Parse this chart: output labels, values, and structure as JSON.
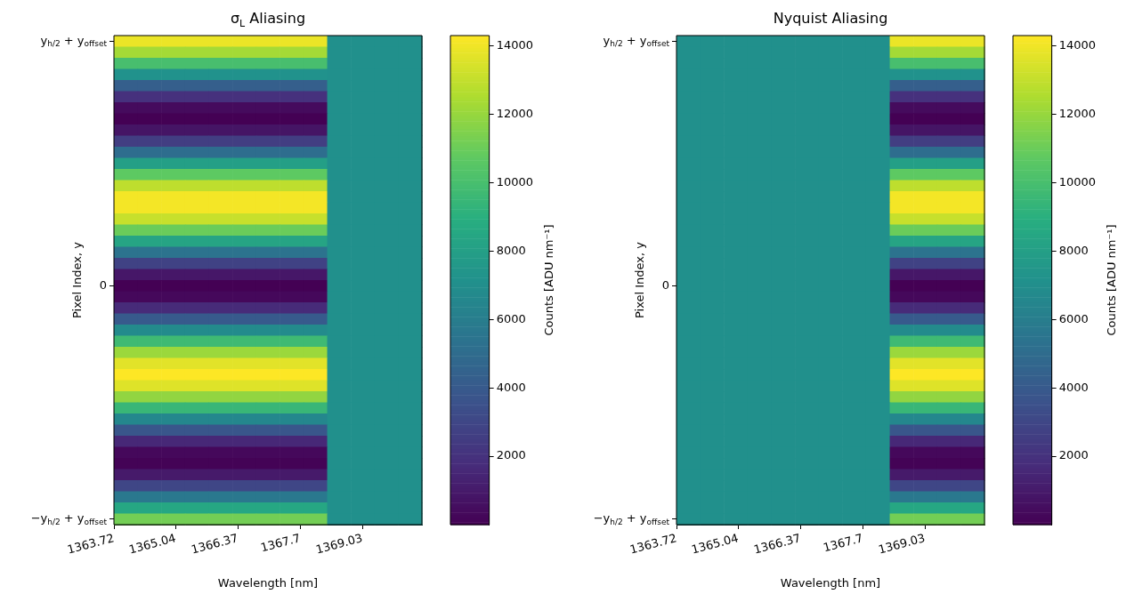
{
  "chart_data": [
    {
      "type": "heatmap",
      "title": "σ$_{L}$ Aliasing",
      "xlabel": "Wavelength [nm]",
      "ylabel": "Pixel Index, y",
      "clabel": "Counts [ADU nm⁻¹]",
      "xlim": [
        1363.72,
        1370.3
      ],
      "xticks": [
        1363.72,
        1365.04,
        1366.37,
        1367.7,
        1369.03
      ],
      "y_categories": [
        "y$_{h/2}$ + y$_{offset}$",
        null,
        null,
        null,
        null,
        null,
        null,
        null,
        null,
        null,
        null,
        null,
        null,
        null,
        null,
        null,
        null,
        null,
        null,
        null,
        null,
        null,
        "0",
        null,
        null,
        null,
        null,
        null,
        null,
        null,
        null,
        null,
        null,
        null,
        null,
        null,
        null,
        null,
        null,
        null,
        null,
        null,
        null,
        "−y$_{h/2}$ + y$_{offset}$"
      ],
      "clim": [
        0,
        14300
      ],
      "cticks": [
        2000,
        4000,
        6000,
        8000,
        10000,
        12000,
        14000
      ],
      "cells": [
        [
          13900,
          13900,
          13900,
          13900,
          13900,
          13900,
          13900,
          13900,
          13900,
          7100,
          7100,
          7100,
          7100
        ],
        [
          12300,
          12300,
          12300,
          12300,
          12300,
          12300,
          12300,
          12300,
          12300,
          7100,
          7100,
          7100,
          7100
        ],
        [
          10000,
          10000,
          10000,
          10000,
          10000,
          10000,
          10000,
          10000,
          10000,
          7100,
          7100,
          7100,
          7100
        ],
        [
          7200,
          7200,
          7200,
          7200,
          7200,
          7200,
          7200,
          7200,
          7200,
          7100,
          7100,
          7100,
          7100
        ],
        [
          4300,
          4300,
          4300,
          4300,
          4300,
          4300,
          4300,
          4300,
          4300,
          7100,
          7100,
          7100,
          7100
        ],
        [
          2000,
          2000,
          2000,
          2000,
          2000,
          2000,
          2000,
          2000,
          2000,
          7100,
          7100,
          7100,
          7100
        ],
        [
          400,
          400,
          400,
          400,
          400,
          400,
          400,
          400,
          400,
          7100,
          7100,
          7100,
          7100
        ],
        [
          0,
          0,
          0,
          0,
          0,
          0,
          0,
          0,
          0,
          7100,
          7100,
          7100,
          7100
        ],
        [
          800,
          800,
          800,
          800,
          800,
          800,
          800,
          800,
          800,
          7100,
          7100,
          7100,
          7100
        ],
        [
          2600,
          2600,
          2600,
          2600,
          2600,
          2600,
          2600,
          2600,
          2600,
          7100,
          7100,
          7100,
          7100
        ],
        [
          5100,
          5100,
          5100,
          5100,
          5100,
          5100,
          5100,
          5100,
          5100,
          7100,
          7100,
          7100,
          7100
        ],
        [
          8000,
          8000,
          8000,
          8000,
          8000,
          8000,
          8000,
          8000,
          8000,
          7100,
          7100,
          7100,
          7100
        ],
        [
          10700,
          10700,
          10700,
          10700,
          10700,
          10700,
          10700,
          10700,
          10700,
          7100,
          7100,
          7100,
          7100
        ],
        [
          12900,
          12900,
          12900,
          12900,
          12900,
          12900,
          12900,
          12900,
          12900,
          7100,
          7100,
          7100,
          7100
        ],
        [
          14100,
          14100,
          14100,
          14100,
          14100,
          14100,
          14100,
          14100,
          14100,
          7100,
          7100,
          7100,
          7100
        ],
        [
          14100,
          14100,
          14100,
          14100,
          14100,
          14100,
          14100,
          14100,
          14100,
          7100,
          7100,
          7100,
          7100
        ],
        [
          13100,
          13100,
          13100,
          13100,
          13100,
          13100,
          13100,
          13100,
          13100,
          7100,
          7100,
          7100,
          7100
        ],
        [
          11000,
          11000,
          11000,
          11000,
          11000,
          11000,
          11000,
          11000,
          11000,
          7100,
          7100,
          7100,
          7100
        ],
        [
          8300,
          8300,
          8300,
          8300,
          8300,
          8300,
          8300,
          8300,
          8300,
          7100,
          7100,
          7100,
          7100
        ],
        [
          5400,
          5400,
          5400,
          5400,
          5400,
          5400,
          5400,
          5400,
          5400,
          7100,
          7100,
          7100,
          7100
        ],
        [
          2800,
          2800,
          2800,
          2800,
          2800,
          2800,
          2800,
          2800,
          2800,
          7100,
          7100,
          7100,
          7100
        ],
        [
          900,
          900,
          900,
          900,
          900,
          900,
          900,
          900,
          900,
          7100,
          7100,
          7100,
          7100
        ],
        [
          0,
          0,
          0,
          0,
          0,
          0,
          0,
          0,
          0,
          7100,
          7100,
          7100,
          7100
        ],
        [
          300,
          300,
          300,
          300,
          300,
          300,
          300,
          300,
          300,
          7100,
          7100,
          7100,
          7100
        ],
        [
          1700,
          1700,
          1700,
          1700,
          1700,
          1700,
          1700,
          1700,
          1700,
          7100,
          7100,
          7100,
          7100
        ],
        [
          4000,
          4000,
          4000,
          4000,
          4000,
          4000,
          4000,
          4000,
          4000,
          7100,
          7100,
          7100,
          7100
        ],
        [
          6800,
          6800,
          6800,
          6800,
          6800,
          6800,
          6800,
          6800,
          6800,
          7100,
          7100,
          7100,
          7100
        ],
        [
          9700,
          9700,
          9700,
          9700,
          9700,
          9700,
          9700,
          9700,
          9700,
          7100,
          7100,
          7100,
          7100
        ],
        [
          12100,
          12100,
          12100,
          12100,
          12100,
          12100,
          12100,
          12100,
          12100,
          7100,
          7100,
          7100,
          7100
        ],
        [
          13700,
          13700,
          13700,
          13700,
          13700,
          13700,
          13700,
          13700,
          13700,
          7100,
          7100,
          7100,
          7100
        ],
        [
          14300,
          14300,
          14300,
          14300,
          14300,
          14300,
          14300,
          14300,
          14300,
          7100,
          7100,
          7100,
          7100
        ],
        [
          13600,
          13600,
          13600,
          13600,
          13600,
          13600,
          13600,
          13600,
          13600,
          7100,
          7100,
          7100,
          7100
        ],
        [
          11900,
          11900,
          11900,
          11900,
          11900,
          11900,
          11900,
          11900,
          11900,
          7100,
          7100,
          7100,
          7100
        ],
        [
          9500,
          9500,
          9500,
          9500,
          9500,
          9500,
          9500,
          9500,
          9500,
          7100,
          7100,
          7100,
          7100
        ],
        [
          6600,
          6600,
          6600,
          6600,
          6600,
          6600,
          6600,
          6600,
          6600,
          7100,
          7100,
          7100,
          7100
        ],
        [
          3800,
          3800,
          3800,
          3800,
          3800,
          3800,
          3800,
          3800,
          3800,
          7100,
          7100,
          7100,
          7100
        ],
        [
          1600,
          1600,
          1600,
          1600,
          1600,
          1600,
          1600,
          1600,
          1600,
          7100,
          7100,
          7100,
          7100
        ],
        [
          300,
          300,
          300,
          300,
          300,
          300,
          300,
          300,
          300,
          7100,
          7100,
          7100,
          7100
        ],
        [
          100,
          100,
          100,
          100,
          100,
          100,
          100,
          100,
          100,
          7100,
          7100,
          7100,
          7100
        ],
        [
          1000,
          1000,
          1000,
          1000,
          1000,
          1000,
          1000,
          1000,
          1000,
          7100,
          7100,
          7100,
          7100
        ],
        [
          3000,
          3000,
          3000,
          3000,
          3000,
          3000,
          3000,
          3000,
          3000,
          7100,
          7100,
          7100,
          7100
        ],
        [
          5700,
          5700,
          5700,
          5700,
          5700,
          5700,
          5700,
          5700,
          5700,
          7100,
          7100,
          7100,
          7100
        ],
        [
          8500,
          8500,
          8500,
          8500,
          8500,
          8500,
          8500,
          8500,
          8500,
          7100,
          7100,
          7100,
          7100
        ],
        [
          11200,
          11200,
          11200,
          11200,
          11200,
          11200,
          11200,
          11200,
          11200,
          7100,
          7100,
          7100,
          7100
        ]
      ]
    },
    {
      "type": "heatmap",
      "title": "Nyquist Aliasing",
      "xlabel": "Wavelength [nm]",
      "ylabel": "Pixel Index, y",
      "clabel": "Counts [ADU nm⁻¹]",
      "xlim": [
        1363.72,
        1370.3
      ],
      "xticks": [
        1363.72,
        1365.04,
        1366.37,
        1367.7,
        1369.03
      ],
      "y_categories": [
        "y$_{h/2}$ + y$_{offset}$",
        null,
        null,
        null,
        null,
        null,
        null,
        null,
        null,
        null,
        null,
        null,
        null,
        null,
        null,
        null,
        null,
        null,
        null,
        null,
        null,
        null,
        "0",
        null,
        null,
        null,
        null,
        null,
        null,
        null,
        null,
        null,
        null,
        null,
        null,
        null,
        null,
        null,
        null,
        null,
        null,
        null,
        null,
        "−y$_{h/2}$ + y$_{offset}$"
      ],
      "clim": [
        0,
        14300
      ],
      "cticks": [
        2000,
        4000,
        6000,
        8000,
        10000,
        12000,
        14000
      ],
      "cells": [
        [
          7100,
          7100,
          7100,
          7100,
          7100,
          7100,
          7100,
          7100,
          7100,
          13900,
          13900,
          13900,
          13900
        ],
        [
          7100,
          7100,
          7100,
          7100,
          7100,
          7100,
          7100,
          7100,
          7100,
          12300,
          12300,
          12300,
          12300
        ],
        [
          7100,
          7100,
          7100,
          7100,
          7100,
          7100,
          7100,
          7100,
          7100,
          10000,
          10000,
          10000,
          10000
        ],
        [
          7100,
          7100,
          7100,
          7100,
          7100,
          7100,
          7100,
          7100,
          7100,
          7200,
          7200,
          7200,
          7200
        ],
        [
          7100,
          7100,
          7100,
          7100,
          7100,
          7100,
          7100,
          7100,
          7100,
          4300,
          4300,
          4300,
          4300
        ],
        [
          7100,
          7100,
          7100,
          7100,
          7100,
          7100,
          7100,
          7100,
          7100,
          2000,
          2000,
          2000,
          2000
        ],
        [
          7100,
          7100,
          7100,
          7100,
          7100,
          7100,
          7100,
          7100,
          7100,
          400,
          400,
          400,
          400
        ],
        [
          7100,
          7100,
          7100,
          7100,
          7100,
          7100,
          7100,
          7100,
          7100,
          0,
          0,
          0,
          0
        ],
        [
          7100,
          7100,
          7100,
          7100,
          7100,
          7100,
          7100,
          7100,
          7100,
          800,
          800,
          800,
          800
        ],
        [
          7100,
          7100,
          7100,
          7100,
          7100,
          7100,
          7100,
          7100,
          7100,
          2600,
          2600,
          2600,
          2600
        ],
        [
          7100,
          7100,
          7100,
          7100,
          7100,
          7100,
          7100,
          7100,
          7100,
          5100,
          5100,
          5100,
          5100
        ],
        [
          7100,
          7100,
          7100,
          7100,
          7100,
          7100,
          7100,
          7100,
          7100,
          8000,
          8000,
          8000,
          8000
        ],
        [
          7100,
          7100,
          7100,
          7100,
          7100,
          7100,
          7100,
          7100,
          7100,
          10700,
          10700,
          10700,
          10700
        ],
        [
          7100,
          7100,
          7100,
          7100,
          7100,
          7100,
          7100,
          7100,
          7100,
          12900,
          12900,
          12900,
          12900
        ],
        [
          7100,
          7100,
          7100,
          7100,
          7100,
          7100,
          7100,
          7100,
          7100,
          14100,
          14100,
          14100,
          14100
        ],
        [
          7100,
          7100,
          7100,
          7100,
          7100,
          7100,
          7100,
          7100,
          7100,
          14100,
          14100,
          14100,
          14100
        ],
        [
          7100,
          7100,
          7100,
          7100,
          7100,
          7100,
          7100,
          7100,
          7100,
          13100,
          13100,
          13100,
          13100
        ],
        [
          7100,
          7100,
          7100,
          7100,
          7100,
          7100,
          7100,
          7100,
          7100,
          11000,
          11000,
          11000,
          11000
        ],
        [
          7100,
          7100,
          7100,
          7100,
          7100,
          7100,
          7100,
          7100,
          7100,
          8300,
          8300,
          8300,
          8300
        ],
        [
          7100,
          7100,
          7100,
          7100,
          7100,
          7100,
          7100,
          7100,
          7100,
          5400,
          5400,
          5400,
          5400
        ],
        [
          7100,
          7100,
          7100,
          7100,
          7100,
          7100,
          7100,
          7100,
          7100,
          2800,
          2800,
          2800,
          2800
        ],
        [
          7100,
          7100,
          7100,
          7100,
          7100,
          7100,
          7100,
          7100,
          7100,
          900,
          900,
          900,
          900
        ],
        [
          7100,
          7100,
          7100,
          7100,
          7100,
          7100,
          7100,
          7100,
          7100,
          0,
          0,
          0,
          0
        ],
        [
          7100,
          7100,
          7100,
          7100,
          7100,
          7100,
          7100,
          7100,
          7100,
          300,
          300,
          300,
          300
        ],
        [
          7100,
          7100,
          7100,
          7100,
          7100,
          7100,
          7100,
          7100,
          7100,
          1700,
          1700,
          1700,
          1700
        ],
        [
          7100,
          7100,
          7100,
          7100,
          7100,
          7100,
          7100,
          7100,
          7100,
          4000,
          4000,
          4000,
          4000
        ],
        [
          7100,
          7100,
          7100,
          7100,
          7100,
          7100,
          7100,
          7100,
          7100,
          6800,
          6800,
          6800,
          6800
        ],
        [
          7100,
          7100,
          7100,
          7100,
          7100,
          7100,
          7100,
          7100,
          7100,
          9700,
          9700,
          9700,
          9700
        ],
        [
          7100,
          7100,
          7100,
          7100,
          7100,
          7100,
          7100,
          7100,
          7100,
          12100,
          12100,
          12100,
          12100
        ],
        [
          7100,
          7100,
          7100,
          7100,
          7100,
          7100,
          7100,
          7100,
          7100,
          13700,
          13700,
          13700,
          13700
        ],
        [
          7100,
          7100,
          7100,
          7100,
          7100,
          7100,
          7100,
          7100,
          7100,
          14300,
          14300,
          14300,
          14300
        ],
        [
          7100,
          7100,
          7100,
          7100,
          7100,
          7100,
          7100,
          7100,
          7100,
          13600,
          13600,
          13600,
          13600
        ],
        [
          7100,
          7100,
          7100,
          7100,
          7100,
          7100,
          7100,
          7100,
          7100,
          11900,
          11900,
          11900,
          11900
        ],
        [
          7100,
          7100,
          7100,
          7100,
          7100,
          7100,
          7100,
          7100,
          7100,
          9500,
          9500,
          9500,
          9500
        ],
        [
          7100,
          7100,
          7100,
          7100,
          7100,
          7100,
          7100,
          7100,
          7100,
          6600,
          6600,
          6600,
          6600
        ],
        [
          7100,
          7100,
          7100,
          7100,
          7100,
          7100,
          7100,
          7100,
          7100,
          3800,
          3800,
          3800,
          3800
        ],
        [
          7100,
          7100,
          7100,
          7100,
          7100,
          7100,
          7100,
          7100,
          7100,
          1600,
          1600,
          1600,
          1600
        ],
        [
          7100,
          7100,
          7100,
          7100,
          7100,
          7100,
          7100,
          7100,
          7100,
          300,
          300,
          300,
          300
        ],
        [
          7100,
          7100,
          7100,
          7100,
          7100,
          7100,
          7100,
          7100,
          7100,
          100,
          100,
          100,
          100
        ],
        [
          7100,
          7100,
          7100,
          7100,
          7100,
          7100,
          7100,
          7100,
          7100,
          1000,
          1000,
          1000,
          1000
        ],
        [
          7100,
          7100,
          7100,
          7100,
          7100,
          7100,
          7100,
          7100,
          7100,
          3000,
          3000,
          3000,
          3000
        ],
        [
          7100,
          7100,
          7100,
          7100,
          7100,
          7100,
          7100,
          7100,
          7100,
          5700,
          5700,
          5700,
          5700
        ],
        [
          7100,
          7100,
          7100,
          7100,
          7100,
          7100,
          7100,
          7100,
          7100,
          8500,
          8500,
          8500,
          8500
        ],
        [
          7100,
          7100,
          7100,
          7100,
          7100,
          7100,
          7100,
          7100,
          7100,
          11200,
          11200,
          11200,
          11200
        ]
      ]
    }
  ]
}
